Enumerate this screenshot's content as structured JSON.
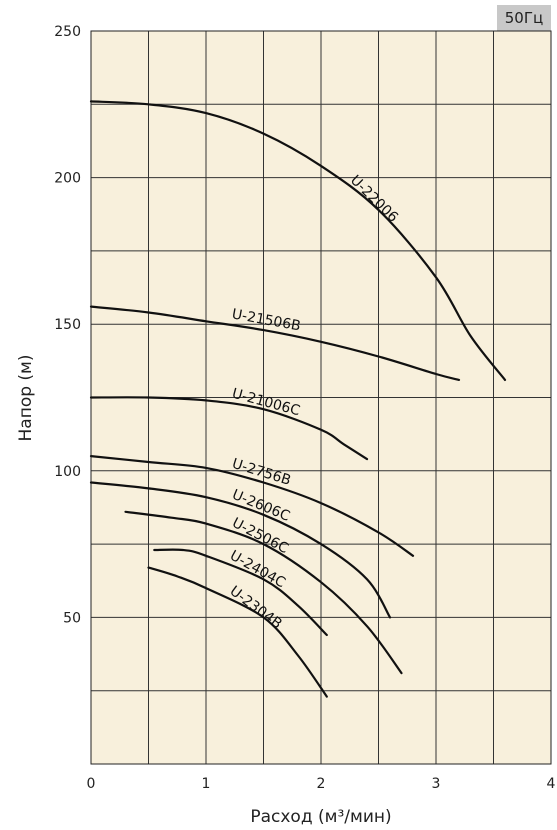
{
  "badge": "50Гц",
  "chart_data": {
    "type": "line",
    "title": "",
    "xlabel": "Расход (м³/мин)",
    "ylabel": "Напор (м)",
    "xlim": [
      0,
      4
    ],
    "ylim": [
      0,
      250
    ],
    "x_ticks": [
      "0",
      "1",
      "2",
      "3",
      "4"
    ],
    "y_ticks": [
      "50",
      "100",
      "150",
      "200",
      "250"
    ],
    "x_tick_values": [
      0,
      1,
      2,
      3,
      4
    ],
    "y_tick_values": [
      50,
      100,
      150,
      200,
      250
    ],
    "grid": true,
    "background": "#f8f0dc",
    "line_color": "#111111",
    "series": [
      {
        "name": "U-22006",
        "x": [
          0,
          0.5,
          1.0,
          1.5,
          2.0,
          2.5,
          3.0,
          3.3,
          3.6
        ],
        "y": [
          226,
          225,
          222,
          215,
          204,
          189,
          166,
          146,
          131
        ]
      },
      {
        "name": "U-21506B",
        "x": [
          0,
          0.5,
          1.0,
          1.5,
          2.0,
          2.5,
          3.0,
          3.2
        ],
        "y": [
          156,
          154,
          151,
          148,
          144,
          139,
          133,
          131
        ]
      },
      {
        "name": "U-21006C",
        "x": [
          0,
          0.5,
          1.0,
          1.5,
          2.0,
          2.2,
          2.4
        ],
        "y": [
          125,
          125,
          124,
          121,
          114,
          109,
          104
        ]
      },
      {
        "name": "U-2756B",
        "x": [
          0,
          0.5,
          1.0,
          1.5,
          2.0,
          2.5,
          2.8
        ],
        "y": [
          105,
          103,
          101,
          96,
          89,
          79,
          71
        ]
      },
      {
        "name": "U-2606C",
        "x": [
          0,
          0.5,
          1.0,
          1.5,
          2.0,
          2.4,
          2.6
        ],
        "y": [
          96,
          94,
          91,
          85,
          75,
          63,
          50
        ]
      },
      {
        "name": "U-2506C",
        "x": [
          0.3,
          0.7,
          1.0,
          1.5,
          2.0,
          2.4,
          2.7
        ],
        "y": [
          86,
          84,
          82,
          75,
          62,
          47,
          31
        ]
      },
      {
        "name": "U-2404C",
        "x": [
          0.55,
          0.8,
          1.0,
          1.5,
          1.8,
          2.05
        ],
        "y": [
          73,
          73,
          71,
          63,
          54,
          44
        ]
      },
      {
        "name": "U-2304B",
        "x": [
          0.5,
          0.75,
          1.0,
          1.5,
          1.8,
          2.05
        ],
        "y": [
          67,
          64,
          60,
          50,
          37,
          23
        ]
      }
    ]
  }
}
